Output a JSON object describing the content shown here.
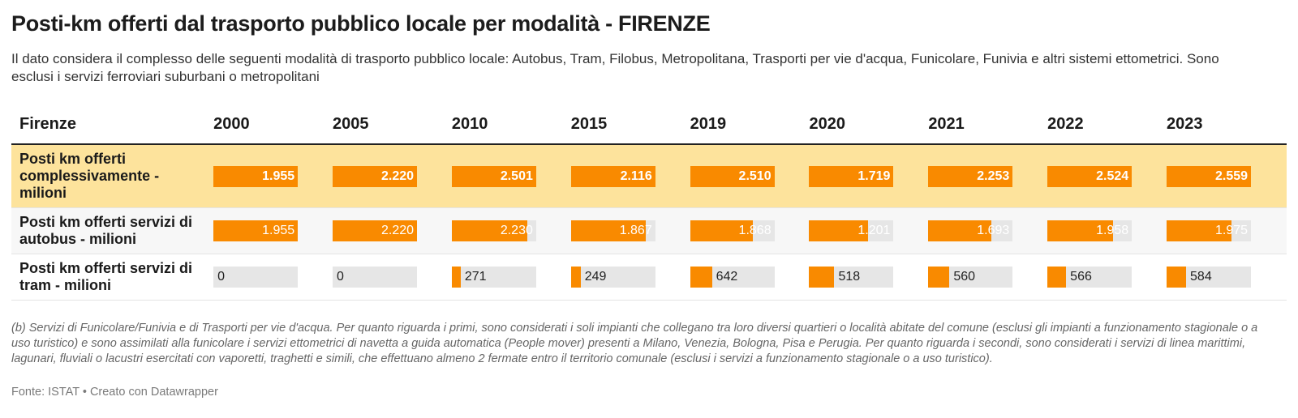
{
  "header": {
    "title": "Posti-km offerti dal trasporto pubblico locale per modalità - FIRENZE",
    "subtitle": "Il dato considera il complesso delle seguenti modalità di trasporto pubblico locale: Autobus, Tram, Filobus, Metropolitana, Trasporti per vie d'acqua, Funicolare, Funivia e altri sistemi ettometrici. Sono esclusi i servizi ferroviari suburbani o metropolitani"
  },
  "colors": {
    "bar": "#f98a00",
    "highlight_row": "#fde39c",
    "bar_background": "#e6e6e6"
  },
  "chart_data": {
    "type": "table",
    "row_header": "Firenze",
    "columns": [
      "2000",
      "2005",
      "2010",
      "2015",
      "2019",
      "2020",
      "2021",
      "2022",
      "2023"
    ],
    "rows": [
      {
        "label": "Posti km offerti complessivamente - milioni",
        "highlighted": true,
        "values": [
          1955,
          2220,
          2501,
          2116,
          2510,
          1719,
          2253,
          2524,
          2559
        ],
        "display": [
          "1.955",
          "2.220",
          "2.501",
          "2.116",
          "2.510",
          "1.719",
          "2.253",
          "2.524",
          "2.559"
        ]
      },
      {
        "label": "Posti km offerti servizi di autobus - milioni",
        "highlighted": false,
        "values": [
          1955,
          2220,
          2230,
          1867,
          1868,
          1201,
          1693,
          1958,
          1975
        ],
        "display": [
          "1.955",
          "2.220",
          "2.230",
          "1.867",
          "1.868",
          "1.201",
          "1.693",
          "1.958",
          "1.975"
        ]
      },
      {
        "label": "Posti km offerti servizi di tram - milioni",
        "highlighted": false,
        "values": [
          0,
          0,
          271,
          249,
          642,
          518,
          560,
          566,
          584
        ],
        "display": [
          "0",
          "0",
          "271",
          "249",
          "642",
          "518",
          "560",
          "566",
          "584"
        ]
      }
    ]
  },
  "notes": "(b) Servizi di Funicolare/Funivia e di Trasporti per vie d'acqua. Per quanto riguarda i primi, sono considerati i soli impianti che collegano tra loro diversi quartieri o località abitate del comune (esclusi gli impianti a funzionamento stagionale o a uso turistico) e sono assimilati alla funicolare i servizi ettometrici di navetta a guida automatica (People mover) presenti a Milano, Venezia, Bologna, Pisa e Perugia. Per quanto riguarda i secondi, sono considerati i servizi di linea marittimi, lagunari, fluviali o lacustri esercitati con vaporetti, traghetti e simili, che effettuano almeno 2 fermate entro il territorio comunale (esclusi i servizi a funzionamento stagionale o a uso turistico).",
  "footer": {
    "source": "Fonte: ISTAT • Creato con Datawrapper"
  }
}
